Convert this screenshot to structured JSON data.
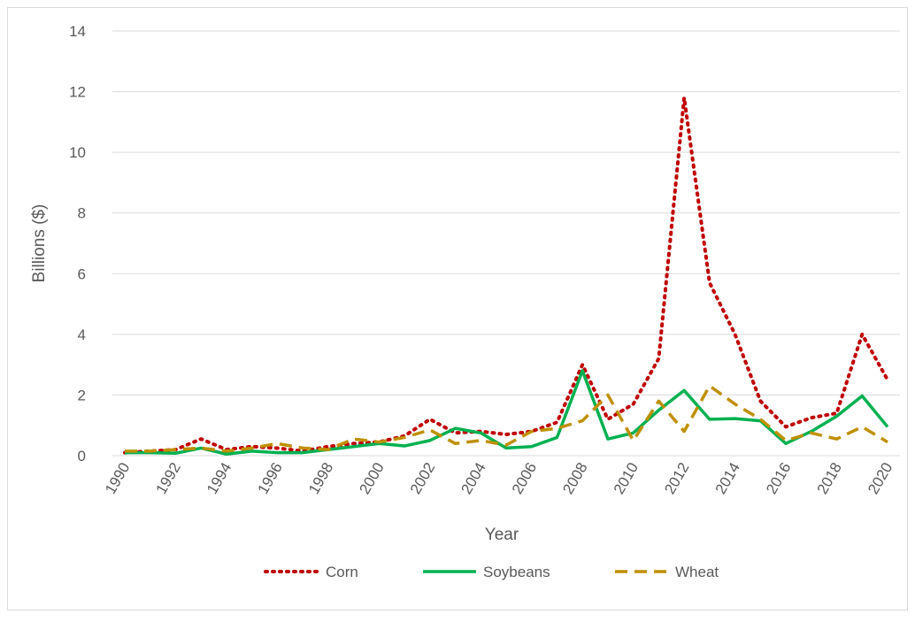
{
  "chart_data": {
    "type": "line",
    "x": [
      1990,
      1991,
      1992,
      1993,
      1994,
      1995,
      1996,
      1997,
      1998,
      1999,
      2000,
      2001,
      2002,
      2003,
      2004,
      2005,
      2006,
      2007,
      2008,
      2009,
      2010,
      2011,
      2012,
      2013,
      2014,
      2015,
      2016,
      2017,
      2018,
      2019,
      2020
    ],
    "series": [
      {
        "name": "Corn",
        "color": "#c00000",
        "dash": "dotted",
        "values": [
          0.1,
          0.15,
          0.2,
          0.55,
          0.2,
          0.3,
          0.25,
          0.15,
          0.3,
          0.4,
          0.45,
          0.65,
          1.2,
          0.75,
          0.8,
          0.7,
          0.8,
          1.1,
          3.0,
          1.2,
          1.7,
          3.2,
          11.8,
          5.7,
          4.0,
          1.8,
          0.95,
          1.25,
          1.4,
          4.0,
          2.5
        ]
      },
      {
        "name": "Soybeans",
        "color": "#00b050",
        "dash": "solid",
        "values": [
          0.1,
          0.1,
          0.08,
          0.25,
          0.05,
          0.15,
          0.1,
          0.1,
          0.2,
          0.3,
          0.4,
          0.32,
          0.5,
          0.9,
          0.75,
          0.25,
          0.3,
          0.6,
          2.8,
          0.55,
          0.75,
          1.5,
          2.15,
          1.2,
          1.22,
          1.15,
          0.4,
          0.8,
          1.3,
          1.97,
          0.95
        ]
      },
      {
        "name": "Wheat",
        "color": "#bf9000",
        "dash": "dashed",
        "values": [
          0.15,
          0.15,
          0.2,
          0.25,
          0.15,
          0.25,
          0.4,
          0.25,
          0.2,
          0.55,
          0.45,
          0.6,
          0.85,
          0.4,
          0.5,
          0.35,
          0.8,
          0.9,
          1.15,
          2.0,
          0.5,
          1.8,
          0.8,
          2.3,
          1.7,
          1.2,
          0.5,
          0.75,
          0.55,
          0.95,
          0.45
        ]
      }
    ],
    "x_label": "Year",
    "y_label": "Billions ($)",
    "xlim": [
      1990,
      2020
    ],
    "xticks": [
      1990,
      1992,
      1994,
      1996,
      1998,
      2000,
      2002,
      2004,
      2006,
      2008,
      2010,
      2012,
      2014,
      2016,
      2018,
      2020
    ],
    "ylim": [
      0,
      14
    ],
    "yticks": [
      0,
      2,
      4,
      6,
      8,
      10,
      12,
      14
    ],
    "grid": true,
    "legend": "bottom"
  }
}
